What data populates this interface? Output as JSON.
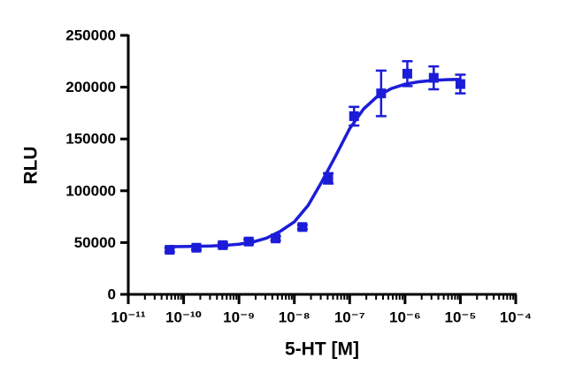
{
  "chart_data": {
    "type": "scatter",
    "x_label": "5-HT [M]",
    "y_label": "RLU",
    "xscale": "log",
    "minor_ticks": true,
    "xlim": [
      1e-11,
      0.0001
    ],
    "xticks": [
      {
        "value": 1e-11,
        "label": "10⁻¹¹"
      },
      {
        "value": 1e-10,
        "label": "10⁻¹⁰"
      },
      {
        "value": 1e-09,
        "label": "10⁻⁹"
      },
      {
        "value": 1e-08,
        "label": "10⁻⁸"
      },
      {
        "value": 1e-07,
        "label": "10⁻⁷"
      },
      {
        "value": 1e-06,
        "label": "10⁻⁶"
      },
      {
        "value": 1e-05,
        "label": "10⁻⁵"
      },
      {
        "value": 0.0001,
        "label": "10⁻⁴"
      }
    ],
    "ylim": [
      0,
      250000
    ],
    "yticks": [
      0,
      50000,
      100000,
      150000,
      200000,
      250000
    ],
    "series": [
      {
        "type": "scatter",
        "marker": "square",
        "color": "#1c1cd8",
        "x": [
          5.6e-11,
          1.7e-10,
          5.1e-10,
          1.5e-09,
          4.6e-09,
          1.4e-08,
          4.1e-08,
          1.2e-07,
          3.7e-07,
          1.1e-06,
          3.3e-06,
          1e-05
        ],
        "values": [
          43000,
          45000,
          47500,
          51000,
          54000,
          65000,
          112000,
          172000,
          194000,
          213000,
          209000,
          203000
        ],
        "errors": [
          2000,
          2000,
          2000,
          2000,
          2000,
          2000,
          5000,
          9000,
          22000,
          12000,
          11000,
          9000
        ]
      },
      {
        "type": "line",
        "color": "#1c1cd8",
        "x": [
          5.6e-11,
          1e-10,
          1.78e-10,
          3.16e-10,
          5.62e-10,
          1e-09,
          1.78e-09,
          3.16e-09,
          5.62e-09,
          1e-08,
          1.78e-08,
          3.16e-08,
          5.62e-08,
          1e-07,
          1.78e-07,
          3.16e-07,
          5.62e-07,
          1e-06,
          1.78e-06,
          3.16e-06,
          5.62e-06,
          1e-05
        ],
        "values": [
          46100,
          46200,
          46400,
          46700,
          47300,
          48400,
          50500,
          54300,
          61000,
          70000,
          86000,
          109000,
          134000,
          160000,
          178900,
          191100,
          198600,
          202900,
          205200,
          206500,
          207200,
          207600
        ]
      }
    ]
  }
}
